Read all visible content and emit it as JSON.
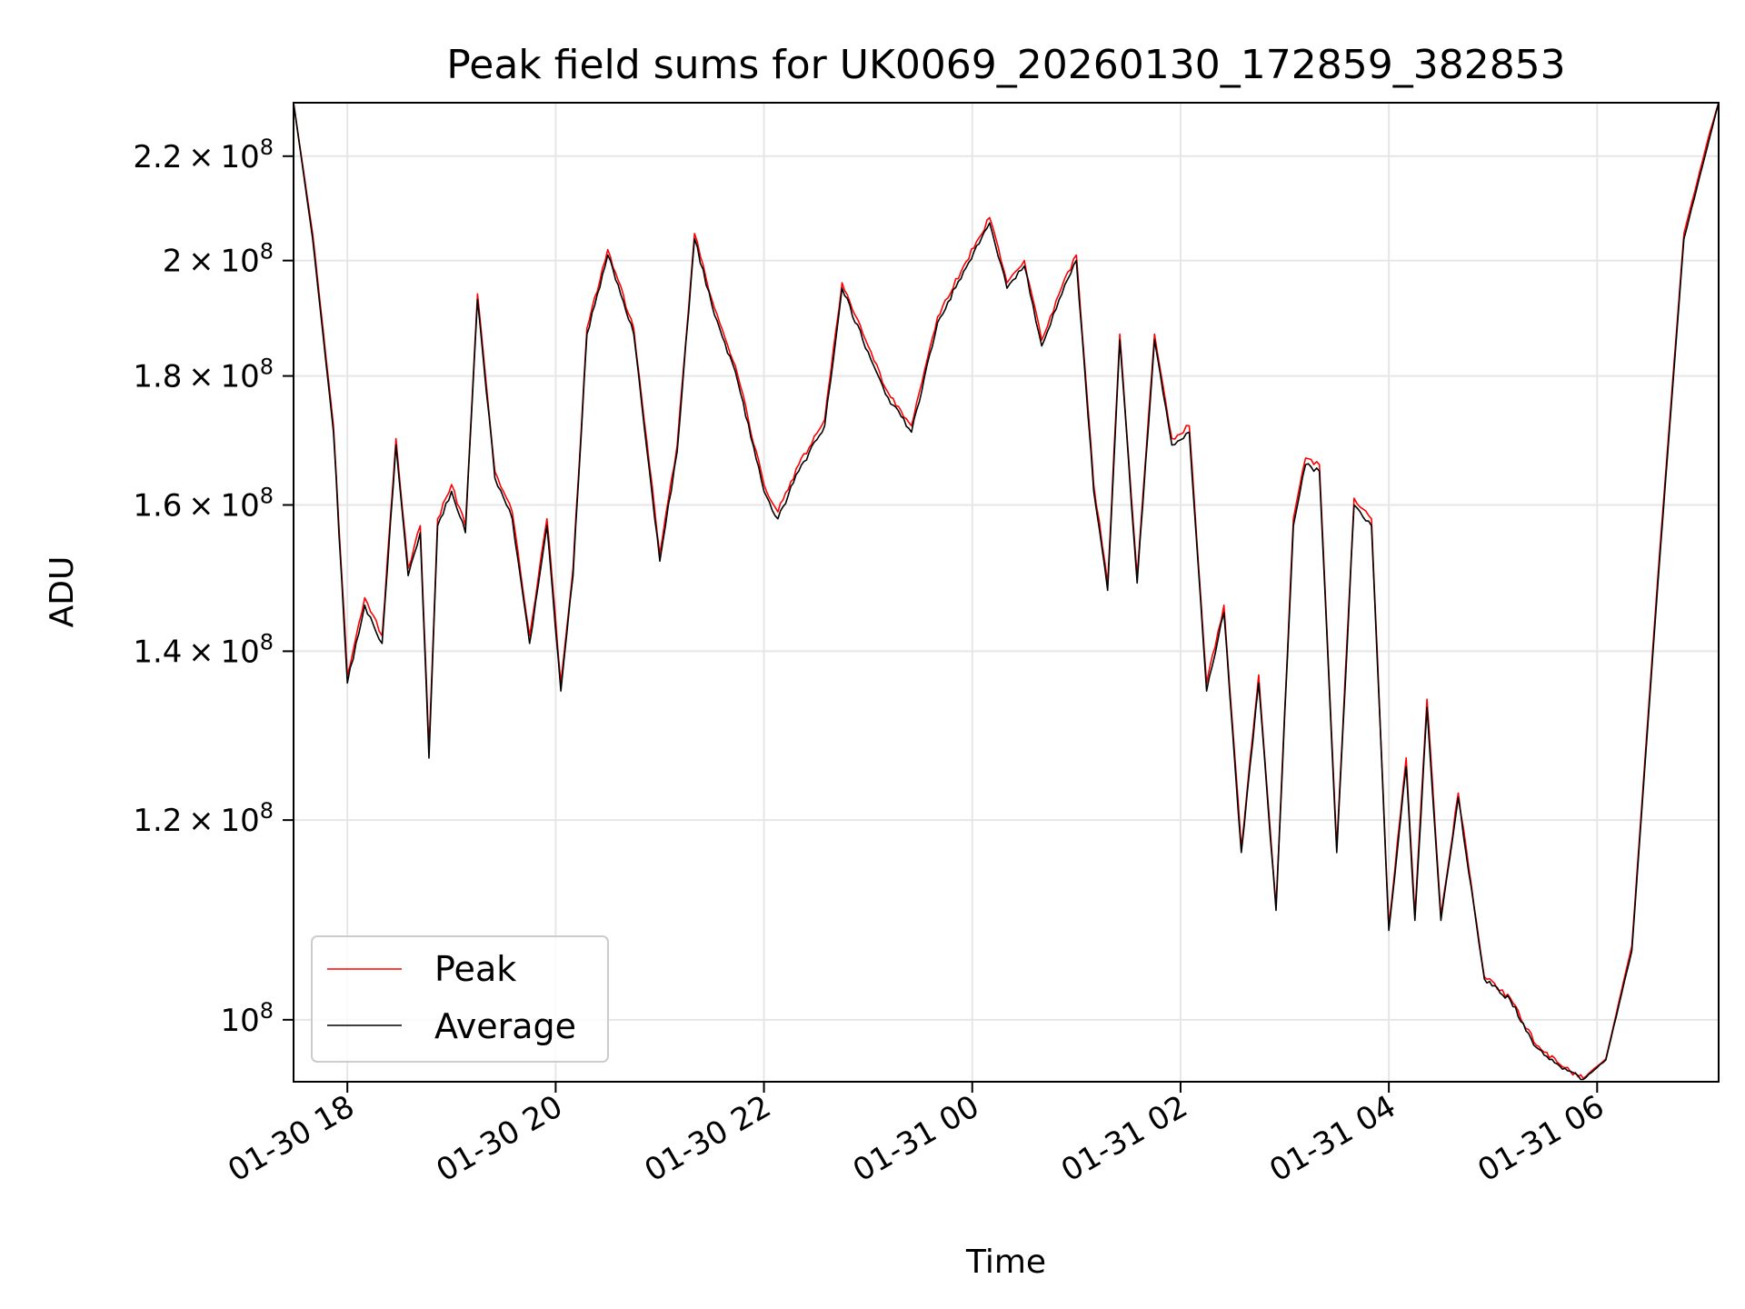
{
  "chart_data": {
    "type": "line",
    "title": "Peak field sums for UK0069_20260130_172859_382853",
    "xlabel": "Time",
    "ylabel": "ADU",
    "yscale": "log",
    "grid": true,
    "legend_position": "lower-left",
    "xlim": [
      "2026-01-30T17:29",
      "2026-01-31T07:10"
    ],
    "ylim": [
      94500000,
      231000000
    ],
    "x_ticks": [
      {
        "value": "2026-01-30T18:00",
        "label": "01-30 18"
      },
      {
        "value": "2026-01-30T20:00",
        "label": "01-30 20"
      },
      {
        "value": "2026-01-30T22:00",
        "label": "01-30 22"
      },
      {
        "value": "2026-01-31T00:00",
        "label": "01-31 00"
      },
      {
        "value": "2026-01-31T02:00",
        "label": "01-31 02"
      },
      {
        "value": "2026-01-31T04:00",
        "label": "01-31 04"
      },
      {
        "value": "2026-01-31T06:00",
        "label": "01-31 06"
      }
    ],
    "y_ticks": [
      {
        "value": 100000000,
        "mantissa": "",
        "exponent": "8"
      },
      {
        "value": 120000000,
        "mantissa": "1.2",
        "exponent": "8"
      },
      {
        "value": 140000000,
        "mantissa": "1.4",
        "exponent": "8"
      },
      {
        "value": 160000000,
        "mantissa": "1.6",
        "exponent": "8"
      },
      {
        "value": 180000000,
        "mantissa": "1.8",
        "exponent": "8"
      },
      {
        "value": 200000000,
        "mantissa": "2",
        "exponent": "8"
      },
      {
        "value": 220000000,
        "mantissa": "2.2",
        "exponent": "8"
      }
    ],
    "colors": {
      "Peak": "#ff0000",
      "Average": "#000000",
      "grid": "#e6e6e6"
    },
    "series": [
      {
        "name": "Peak",
        "x": [
          "2026-01-30T17:29",
          "2026-01-30T17:40",
          "2026-01-30T17:52",
          "2026-01-30T18:00",
          "2026-01-30T18:10",
          "2026-01-30T18:20",
          "2026-01-30T18:28",
          "2026-01-30T18:35",
          "2026-01-30T18:42",
          "2026-01-30T18:47",
          "2026-01-30T18:52",
          "2026-01-30T19:00",
          "2026-01-30T19:08",
          "2026-01-30T19:15",
          "2026-01-30T19:25",
          "2026-01-30T19:35",
          "2026-01-30T19:45",
          "2026-01-30T19:55",
          "2026-01-30T20:03",
          "2026-01-30T20:10",
          "2026-01-30T20:18",
          "2026-01-30T20:30",
          "2026-01-30T20:45",
          "2026-01-30T21:00",
          "2026-01-30T21:10",
          "2026-01-30T21:20",
          "2026-01-30T21:30",
          "2026-01-30T21:45",
          "2026-01-30T22:00",
          "2026-01-30T22:08",
          "2026-01-30T22:20",
          "2026-01-30T22:35",
          "2026-01-30T22:45",
          "2026-01-30T23:00",
          "2026-01-30T23:10",
          "2026-01-30T23:25",
          "2026-01-30T23:40",
          "2026-01-30T23:55",
          "2026-01-31T00:10",
          "2026-01-31T00:20",
          "2026-01-31T00:30",
          "2026-01-31T00:40",
          "2026-01-31T00:50",
          "2026-01-31T01:00",
          "2026-01-31T01:10",
          "2026-01-31T01:18",
          "2026-01-31T01:25",
          "2026-01-31T01:35",
          "2026-01-31T01:45",
          "2026-01-31T01:55",
          "2026-01-31T02:05",
          "2026-01-31T02:15",
          "2026-01-31T02:25",
          "2026-01-31T02:35",
          "2026-01-31T02:45",
          "2026-01-31T02:55",
          "2026-01-31T03:05",
          "2026-01-31T03:12",
          "2026-01-31T03:20",
          "2026-01-31T03:30",
          "2026-01-31T03:40",
          "2026-01-31T03:50",
          "2026-01-31T04:00",
          "2026-01-31T04:10",
          "2026-01-31T04:15",
          "2026-01-31T04:22",
          "2026-01-31T04:30",
          "2026-01-31T04:40",
          "2026-01-31T04:55",
          "2026-01-31T05:10",
          "2026-01-31T05:25",
          "2026-01-31T05:40",
          "2026-01-31T05:52",
          "2026-01-31T06:05",
          "2026-01-31T06:20",
          "2026-01-31T06:35",
          "2026-01-31T06:50",
          "2026-01-31T07:05",
          "2026-01-31T07:10"
        ],
        "values": [
          231000000,
          205000000,
          172000000,
          137000000,
          147000000,
          142000000,
          170000000,
          151000000,
          157000000,
          128000000,
          158000000,
          163000000,
          157000000,
          194000000,
          165000000,
          159000000,
          142000000,
          158000000,
          136000000,
          151000000,
          188000000,
          202000000,
          188000000,
          153000000,
          169000000,
          205000000,
          193000000,
          180000000,
          163000000,
          159000000,
          166000000,
          173000000,
          196000000,
          185000000,
          178000000,
          172000000,
          190000000,
          199000000,
          208000000,
          196000000,
          200000000,
          186000000,
          194000000,
          201000000,
          163000000,
          149000000,
          187000000,
          150000000,
          187000000,
          170000000,
          172000000,
          136000000,
          146000000,
          117000000,
          137000000,
          111000000,
          158000000,
          167000000,
          166000000,
          117000000,
          161000000,
          158000000,
          109000000,
          127000000,
          110000000,
          134000000,
          110000000,
          123000000,
          104000000,
          102000000,
          97700000,
          95800000,
          94800000,
          96500000,
          107000000,
          150000000,
          205000000,
          225000000,
          231000000
        ]
      },
      {
        "name": "Average",
        "x": [
          "2026-01-30T17:29",
          "2026-01-30T17:40",
          "2026-01-30T17:52",
          "2026-01-30T18:00",
          "2026-01-30T18:10",
          "2026-01-30T18:20",
          "2026-01-30T18:28",
          "2026-01-30T18:35",
          "2026-01-30T18:42",
          "2026-01-30T18:47",
          "2026-01-30T18:52",
          "2026-01-30T19:00",
          "2026-01-30T19:08",
          "2026-01-30T19:15",
          "2026-01-30T19:25",
          "2026-01-30T19:35",
          "2026-01-30T19:45",
          "2026-01-30T19:55",
          "2026-01-30T20:03",
          "2026-01-30T20:10",
          "2026-01-30T20:18",
          "2026-01-30T20:30",
          "2026-01-30T20:45",
          "2026-01-30T21:00",
          "2026-01-30T21:10",
          "2026-01-30T21:20",
          "2026-01-30T21:30",
          "2026-01-30T21:45",
          "2026-01-30T22:00",
          "2026-01-30T22:08",
          "2026-01-30T22:20",
          "2026-01-30T22:35",
          "2026-01-30T22:45",
          "2026-01-30T23:00",
          "2026-01-30T23:10",
          "2026-01-30T23:25",
          "2026-01-30T23:40",
          "2026-01-30T23:55",
          "2026-01-31T00:10",
          "2026-01-31T00:20",
          "2026-01-31T00:30",
          "2026-01-31T00:40",
          "2026-01-31T00:50",
          "2026-01-31T01:00",
          "2026-01-31T01:10",
          "2026-01-31T01:18",
          "2026-01-31T01:25",
          "2026-01-31T01:35",
          "2026-01-31T01:45",
          "2026-01-31T01:55",
          "2026-01-31T02:05",
          "2026-01-31T02:15",
          "2026-01-31T02:25",
          "2026-01-31T02:35",
          "2026-01-31T02:45",
          "2026-01-31T02:55",
          "2026-01-31T03:05",
          "2026-01-31T03:12",
          "2026-01-31T03:20",
          "2026-01-31T03:30",
          "2026-01-31T03:40",
          "2026-01-31T03:50",
          "2026-01-31T04:00",
          "2026-01-31T04:10",
          "2026-01-31T04:15",
          "2026-01-31T04:22",
          "2026-01-31T04:30",
          "2026-01-31T04:40",
          "2026-01-31T04:55",
          "2026-01-31T05:10",
          "2026-01-31T05:25",
          "2026-01-31T05:40",
          "2026-01-31T05:52",
          "2026-01-31T06:05",
          "2026-01-31T06:20",
          "2026-01-31T06:35",
          "2026-01-31T06:50",
          "2026-01-31T07:05",
          "2026-01-31T07:10"
        ],
        "values": [
          231000000,
          204000000,
          171000000,
          136000000,
          146000000,
          141000000,
          169000000,
          150000000,
          156000000,
          127000000,
          157000000,
          162000000,
          156000000,
          193000000,
          164000000,
          158000000,
          141000000,
          157000000,
          135000000,
          150000000,
          187000000,
          201000000,
          187000000,
          152000000,
          168000000,
          204000000,
          192000000,
          179000000,
          162000000,
          158000000,
          165000000,
          172000000,
          195000000,
          184000000,
          177000000,
          171000000,
          189000000,
          198000000,
          207000000,
          195000000,
          199000000,
          185000000,
          193000000,
          200000000,
          162000000,
          148000000,
          186000000,
          149000000,
          186000000,
          169000000,
          171000000,
          135000000,
          145000000,
          116500000,
          136000000,
          110500000,
          157000000,
          166000000,
          165000000,
          116500000,
          160000000,
          157000000,
          108500000,
          126000000,
          109500000,
          133000000,
          109500000,
          122500000,
          103800000,
          101800000,
          97500000,
          95600000,
          94700000,
          96400000,
          106500000,
          149000000,
          204000000,
          224000000,
          231000000
        ]
      }
    ]
  }
}
